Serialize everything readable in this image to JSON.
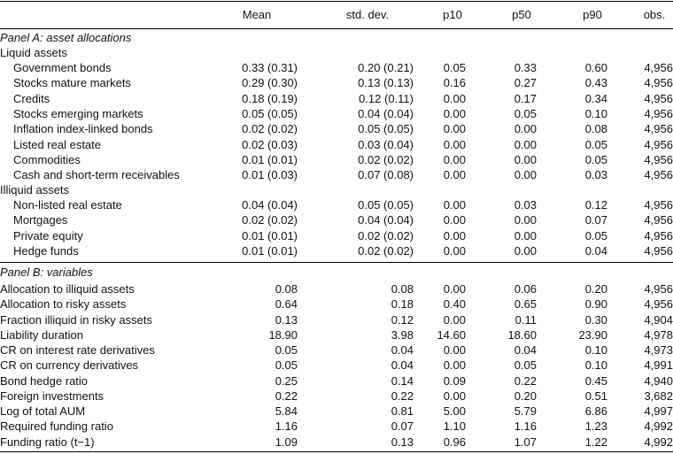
{
  "header": {
    "col0": "",
    "mean": "Mean",
    "sd": "std. dev.",
    "p10": "p10",
    "p50": "p50",
    "p90": "p90",
    "obs": "obs."
  },
  "panelA": {
    "title": "Panel A: asset allocations",
    "liquid_heading": "Liquid assets",
    "liquid": [
      [
        "Government bonds",
        "0.33 (0.31)",
        "0.20 (0.21)",
        "0.05",
        "0.33",
        "0.60",
        "4,956"
      ],
      [
        "Stocks mature markets",
        "0.29 (0.30)",
        "0.13 (0.13)",
        "0.16",
        "0.27",
        "0.43",
        "4,956"
      ],
      [
        "Credits",
        "0.18 (0.19)",
        "0.12 (0.11)",
        "0.00",
        "0.17",
        "0.34",
        "4,956"
      ],
      [
        "Stocks emerging markets",
        "0.05 (0.05)",
        "0.04 (0.04)",
        "0.00",
        "0.05",
        "0.10",
        "4,956"
      ],
      [
        "Inflation index-linked bonds",
        "0.02 (0.02)",
        "0.05 (0.05)",
        "0.00",
        "0.00",
        "0.08",
        "4,956"
      ],
      [
        "Listed real estate",
        "0.02 (0.03)",
        "0.03 (0.04)",
        "0.00",
        "0.00",
        "0.05",
        "4,956"
      ],
      [
        "Commodities",
        "0.01 (0.01)",
        "0.02 (0.02)",
        "0.00",
        "0.00",
        "0.05",
        "4,956"
      ],
      [
        "Cash and short-term receivables",
        "0.01 (0.03)",
        "0.07 (0.08)",
        "0.00",
        "0.00",
        "0.03",
        "4,956"
      ]
    ],
    "illiquid_heading": "Illiquid assets",
    "illiquid": [
      [
        "Non-listed real estate",
        "0.04 (0.04)",
        "0.05 (0.05)",
        "0.00",
        "0.03",
        "0.12",
        "4,956"
      ],
      [
        "Mortgages",
        "0.02 (0.02)",
        "0.04 (0.04)",
        "0.00",
        "0.00",
        "0.07",
        "4,956"
      ],
      [
        "Private equity",
        "0.01 (0.01)",
        "0.02 (0.02)",
        "0.00",
        "0.00",
        "0.05",
        "4,956"
      ],
      [
        "Hedge funds",
        "0.01 (0.01)",
        "0.02 (0.02)",
        "0.00",
        "0.00",
        "0.04",
        "4,956"
      ]
    ]
  },
  "panelB": {
    "title": "Panel B: variables",
    "rows": [
      [
        "Allocation to illiquid assets",
        "0.08",
        "0.08",
        "0.00",
        "0.06",
        "0.20",
        "4,956"
      ],
      [
        "Allocation to risky assets",
        "0.64",
        "0.18",
        "0.40",
        "0.65",
        "0.90",
        "4,956"
      ],
      [
        "Fraction illiquid in risky assets",
        "0.13",
        "0.12",
        "0.00",
        "0.11",
        "0.30",
        "4,904"
      ],
      [
        "Liability duration",
        "18.90",
        "3.98",
        "14.60",
        "18.60",
        "23.90",
        "4,978"
      ],
      [
        "CR on interest rate derivatives",
        "0.05",
        "0.04",
        "0.00",
        "0.04",
        "0.10",
        "4,973"
      ],
      [
        "CR on currency derivatives",
        "0.05",
        "0.04",
        "0.00",
        "0.05",
        "0.10",
        "4,991"
      ],
      [
        "Bond hedge ratio",
        "0.25",
        "0.14",
        "0.09",
        "0.22",
        "0.45",
        "4,940"
      ],
      [
        "Foreign investments",
        "0.22",
        "0.22",
        "0.00",
        "0.20",
        "0.51",
        "3,682"
      ],
      [
        "Log of total AUM",
        "5.84",
        "0.81",
        "5.00",
        "5.79",
        "6.86",
        "4,997"
      ],
      [
        "Required funding ratio",
        "1.16",
        "0.07",
        "1.10",
        "1.16",
        "1.23",
        "4,992"
      ],
      [
        "Funding ratio (t−1)",
        "1.09",
        "0.13",
        "0.96",
        "1.07",
        "1.22",
        "4,992"
      ]
    ]
  }
}
